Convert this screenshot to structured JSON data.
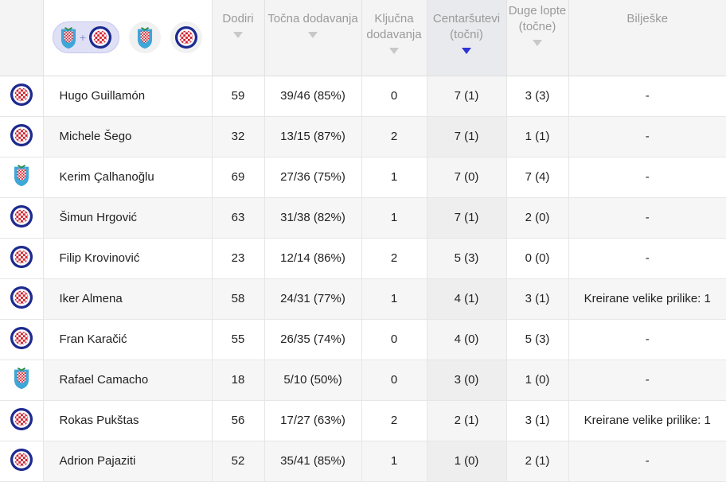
{
  "columns": [
    {
      "label": "Dodiri"
    },
    {
      "label": "Točna dodavanja"
    },
    {
      "label": "Ključna dodavanja"
    },
    {
      "label": "Centaršutevi (točni)"
    },
    {
      "label": "Duge lopte (točne)"
    },
    {
      "label": "Bilješke"
    }
  ],
  "filter": {
    "plus": "+"
  },
  "colors": {
    "sort_active": "#2b35d6",
    "hajduk_blue": "#1d2a8f",
    "hajduk_red": "#d0202c",
    "team2_blue": "#3fa6d8"
  },
  "players": [
    {
      "club": "hajduk-icon",
      "name": "Hugo Guillamón",
      "touches": "59",
      "passes": "39/46 (85%)",
      "key": "0",
      "crosses": "7 (1)",
      "long": "3 (3)",
      "notes": "-"
    },
    {
      "club": "hajduk-icon",
      "name": "Michele Šego",
      "touches": "32",
      "passes": "13/15 (87%)",
      "key": "2",
      "crosses": "7 (1)",
      "long": "1 (1)",
      "notes": "-"
    },
    {
      "club": "team2-icon",
      "name": "Kerim Çalhanoğlu",
      "touches": "69",
      "passes": "27/36 (75%)",
      "key": "1",
      "crosses": "7 (0)",
      "long": "7 (4)",
      "notes": "-"
    },
    {
      "club": "hajduk-icon",
      "name": "Šimun Hrgović",
      "touches": "63",
      "passes": "31/38 (82%)",
      "key": "1",
      "crosses": "7 (1)",
      "long": "2 (0)",
      "notes": "-"
    },
    {
      "club": "hajduk-icon",
      "name": "Filip Krovinović",
      "touches": "23",
      "passes": "12/14 (86%)",
      "key": "2",
      "crosses": "5 (3)",
      "long": "0 (0)",
      "notes": "-"
    },
    {
      "club": "hajduk-icon",
      "name": "Iker Almena",
      "touches": "58",
      "passes": "24/31 (77%)",
      "key": "1",
      "crosses": "4 (1)",
      "long": "3 (1)",
      "notes": "Kreirane velike prilike: 1"
    },
    {
      "club": "hajduk-icon",
      "name": "Fran Karačić",
      "touches": "55",
      "passes": "26/35 (74%)",
      "key": "0",
      "crosses": "4 (0)",
      "long": "5 (3)",
      "notes": "-"
    },
    {
      "club": "team2-icon",
      "name": "Rafael Camacho",
      "touches": "18",
      "passes": "5/10 (50%)",
      "key": "0",
      "crosses": "3 (0)",
      "long": "1 (0)",
      "notes": "-"
    },
    {
      "club": "hajduk-icon",
      "name": "Rokas Pukštas",
      "touches": "56",
      "passes": "17/27 (63%)",
      "key": "2",
      "crosses": "2 (1)",
      "long": "3 (1)",
      "notes": "Kreirane velike prilike: 1"
    },
    {
      "club": "hajduk-icon",
      "name": "Adrion Pajaziti",
      "touches": "52",
      "passes": "35/41 (85%)",
      "key": "1",
      "crosses": "1 (0)",
      "long": "2 (1)",
      "notes": "-"
    }
  ]
}
